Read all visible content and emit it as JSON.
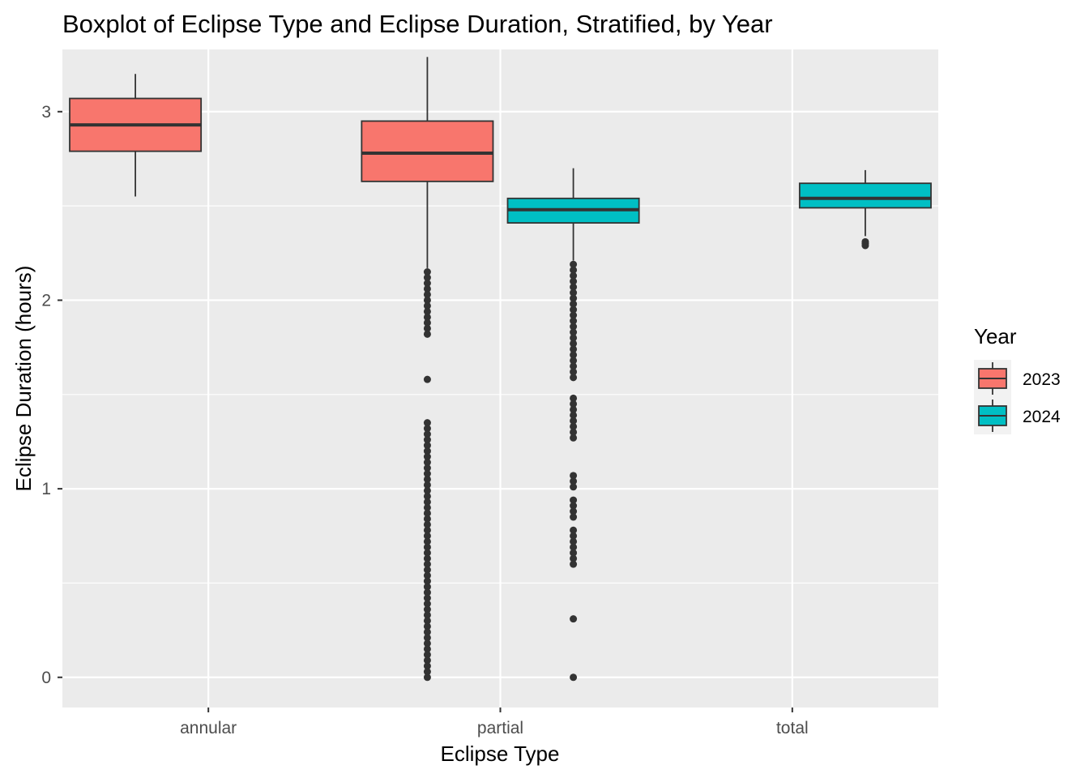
{
  "chart_data": {
    "type": "boxplot",
    "title": "Boxplot of Eclipse Type and Eclipse Duration, Stratified, by Year",
    "xlabel": "Eclipse Type",
    "ylabel": "Eclipse Duration (hours)",
    "categories": [
      "annular",
      "partial",
      "total"
    ],
    "ylim": [
      -0.16,
      3.33
    ],
    "yticks": [
      0,
      1,
      2,
      3
    ],
    "minor_yticks": [
      0.5,
      1.5,
      2.5
    ],
    "grid": true,
    "legend": {
      "title": "Year",
      "position": "right",
      "entries": [
        {
          "label": "2023",
          "color": "#F8766D"
        },
        {
          "label": "2024",
          "color": "#00BFC4"
        }
      ]
    },
    "dodge_positions": [
      -0.25,
      0.25
    ],
    "boxes": [
      {
        "category": "annular",
        "year": "2023",
        "color": "#F8766D",
        "slot": 0,
        "lower_whisker": 2.55,
        "q1": 2.79,
        "median": 2.93,
        "q3": 3.07,
        "upper_whisker": 3.2,
        "outliers": []
      },
      {
        "category": "partial",
        "year": "2023",
        "color": "#F8766D",
        "slot": 0,
        "lower_whisker": 2.17,
        "q1": 2.63,
        "median": 2.78,
        "q3": 2.95,
        "upper_whisker": 3.29,
        "outliers": [
          2.15,
          2.12,
          2.09,
          2.06,
          2.03,
          2.0,
          1.97,
          1.94,
          1.91,
          1.88,
          1.85,
          1.82,
          1.58,
          1.35,
          1.32,
          1.29,
          1.26,
          1.23,
          1.2,
          1.17,
          1.14,
          1.11,
          1.08,
          1.05,
          1.02,
          0.99,
          0.96,
          0.93,
          0.9,
          0.87,
          0.84,
          0.81,
          0.78,
          0.75,
          0.72,
          0.69,
          0.66,
          0.63,
          0.6,
          0.57,
          0.54,
          0.51,
          0.48,
          0.45,
          0.42,
          0.39,
          0.36,
          0.33,
          0.3,
          0.27,
          0.24,
          0.21,
          0.18,
          0.15,
          0.12,
          0.09,
          0.06,
          0.03,
          0.0
        ]
      },
      {
        "category": "partial",
        "year": "2024",
        "color": "#00BFC4",
        "slot": 1,
        "lower_whisker": 2.21,
        "q1": 2.41,
        "median": 2.48,
        "q3": 2.54,
        "upper_whisker": 2.7,
        "outliers": [
          2.19,
          2.16,
          2.13,
          2.1,
          2.07,
          2.04,
          2.01,
          1.98,
          1.95,
          1.92,
          1.89,
          1.86,
          1.83,
          1.8,
          1.77,
          1.74,
          1.71,
          1.68,
          1.65,
          1.62,
          1.59,
          1.48,
          1.45,
          1.42,
          1.39,
          1.36,
          1.33,
          1.3,
          1.27,
          1.07,
          1.04,
          1.01,
          0.94,
          0.91,
          0.88,
          0.85,
          0.78,
          0.75,
          0.72,
          0.69,
          0.66,
          0.63,
          0.6,
          0.31,
          0.0
        ]
      },
      {
        "category": "total",
        "year": "2024",
        "color": "#00BFC4",
        "slot": 1,
        "lower_whisker": 2.34,
        "q1": 2.49,
        "median": 2.54,
        "q3": 2.62,
        "upper_whisker": 2.69,
        "outliers": [
          2.31,
          2.3,
          2.29
        ]
      }
    ]
  }
}
